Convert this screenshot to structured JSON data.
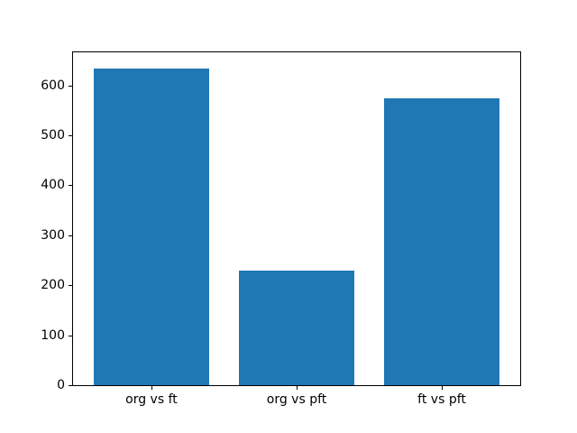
{
  "figure": {
    "background": "#ffffff"
  },
  "chart_data": {
    "type": "bar",
    "title": "",
    "xlabel": "",
    "ylabel": "",
    "categories": [
      "org vs ft",
      "org vs pft",
      "ft vs pft"
    ],
    "values": [
      634,
      230,
      574
    ],
    "yticks": [
      0,
      100,
      200,
      300,
      400,
      500,
      600
    ],
    "ylim": [
      0,
      666
    ],
    "bar_color": "#1f77b4",
    "axis_color": "#000000",
    "bar_width_fraction": 0.8,
    "x_margin_fraction": 0.05,
    "grid": "off",
    "legend": "off"
  }
}
